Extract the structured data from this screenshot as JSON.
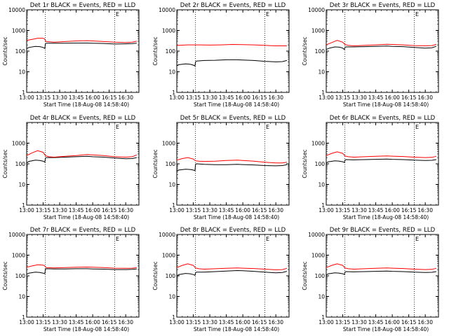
{
  "colors": {
    "events": "#000000",
    "lld": "#ff0000",
    "axes": "#000000",
    "background": "#ffffff"
  },
  "panels_common": {
    "type": "line",
    "ylabel": "Counts/sec",
    "xlabel": "Start Time (18-Aug-08 14:58:40)",
    "y_scale": "log",
    "ylim": [
      1,
      10000
    ],
    "xlim_minutes_from_13_00": [
      0,
      102
    ],
    "x_tick_labels": [
      "13:00",
      "13:15",
      "13:30",
      "13:45",
      "16:00",
      "16:15",
      "16:30"
    ],
    "x_tick_positions_minutes": [
      0,
      15,
      30,
      45,
      60,
      75,
      90
    ],
    "y_tick_labels_hi": [
      "1",
      "10",
      "100",
      "1000",
      "10000"
    ],
    "y_tick_labels_lo": [
      "1",
      "10",
      "100",
      "1000"
    ],
    "dotted_vlines_minutes": [
      17,
      80
    ],
    "marker_label": "E",
    "marker_minutes": 81
  },
  "chart_data": [
    {
      "type": "line",
      "title": "Det 1r BLACK = Events, RED = LLD",
      "y_labels": "hi",
      "series": [
        {
          "name": "Events",
          "x": [
            0,
            2,
            8,
            12,
            15,
            16.5,
            17,
            18,
            25,
            35,
            45,
            55,
            60,
            70,
            80,
            90,
            96,
            100
          ],
          "y": [
            130,
            150,
            170,
            165,
            150,
            135,
            230,
            240,
            240,
            240,
            245,
            245,
            240,
            235,
            220,
            225,
            230,
            240
          ]
        },
        {
          "name": "LLD",
          "x": [
            0,
            5,
            10,
            15,
            16.5,
            17,
            18,
            25,
            35,
            45,
            55,
            60,
            70,
            80,
            90,
            96,
            100
          ],
          "y": [
            330,
            370,
            420,
            420,
            380,
            320,
            290,
            270,
            290,
            310,
            320,
            310,
            290,
            270,
            260,
            270,
            300
          ]
        }
      ]
    },
    {
      "type": "line",
      "title": "Det 2r BLACK = Events, RED = LLD",
      "y_labels": "hi",
      "series": [
        {
          "name": "Events",
          "x": [
            0,
            2,
            8,
            12,
            15,
            16.5,
            17,
            18,
            25,
            35,
            45,
            55,
            60,
            70,
            80,
            90,
            96,
            100
          ],
          "y": [
            20,
            22,
            24,
            23,
            21,
            19,
            30,
            33,
            35,
            36,
            38,
            38,
            37,
            35,
            32,
            30,
            31,
            35
          ]
        },
        {
          "name": "LLD",
          "x": [
            0,
            10,
            20,
            30,
            40,
            50,
            60,
            70,
            80,
            90,
            100
          ],
          "y": [
            190,
            200,
            200,
            195,
            200,
            210,
            205,
            200,
            190,
            180,
            180
          ]
        }
      ]
    },
    {
      "type": "line",
      "title": "Det 3r BLACK = Events, RED = LLD",
      "y_labels": "hi",
      "series": [
        {
          "name": "Events",
          "x": [
            0,
            3,
            8,
            12,
            15,
            16.5,
            17,
            18,
            25,
            35,
            45,
            55,
            60,
            70,
            80,
            90,
            96,
            100
          ],
          "y": [
            120,
            140,
            160,
            155,
            140,
            120,
            150,
            160,
            160,
            165,
            170,
            175,
            170,
            165,
            150,
            140,
            145,
            170
          ]
        },
        {
          "name": "LLD",
          "x": [
            0,
            5,
            10,
            15,
            17,
            20,
            25,
            35,
            45,
            55,
            60,
            70,
            80,
            90,
            96,
            100
          ],
          "y": [
            200,
            260,
            330,
            270,
            210,
            190,
            180,
            190,
            200,
            215,
            210,
            200,
            185,
            180,
            185,
            210
          ]
        }
      ]
    },
    {
      "type": "line",
      "title": "Det 4r BLACK = Events, RED = LLD",
      "y_labels": "lo",
      "series": [
        {
          "name": "Events",
          "x": [
            0,
            2,
            8,
            12,
            15,
            16.5,
            17,
            18,
            25,
            35,
            45,
            55,
            60,
            70,
            80,
            90,
            96,
            100
          ],
          "y": [
            110,
            130,
            150,
            145,
            135,
            120,
            190,
            200,
            200,
            210,
            220,
            230,
            220,
            210,
            190,
            175,
            180,
            200
          ]
        },
        {
          "name": "LLD",
          "x": [
            0,
            5,
            10,
            15,
            17,
            20,
            25,
            35,
            45,
            55,
            60,
            70,
            80,
            90,
            96,
            100
          ],
          "y": [
            250,
            340,
            430,
            360,
            250,
            220,
            210,
            230,
            250,
            280,
            270,
            250,
            220,
            210,
            220,
            270
          ]
        }
      ]
    },
    {
      "type": "line",
      "title": "Det 5r BLACK = Events, RED = LLD",
      "y_labels": "lo",
      "series": [
        {
          "name": "Events",
          "x": [
            0,
            2,
            8,
            12,
            15,
            16.5,
            17,
            18,
            25,
            35,
            45,
            55,
            60,
            70,
            80,
            90,
            96,
            100
          ],
          "y": [
            45,
            50,
            55,
            53,
            50,
            46,
            95,
            100,
            95,
            90,
            90,
            95,
            92,
            88,
            82,
            80,
            82,
            90
          ]
        },
        {
          "name": "LLD",
          "x": [
            0,
            5,
            10,
            15,
            17,
            20,
            25,
            35,
            45,
            55,
            60,
            70,
            80,
            90,
            96,
            100
          ],
          "y": [
            150,
            180,
            200,
            170,
            140,
            135,
            130,
            135,
            145,
            150,
            145,
            135,
            120,
            110,
            110,
            120
          ]
        }
      ]
    },
    {
      "type": "line",
      "title": "Det 6r BLACK = Events, RED = LLD",
      "y_labels": "lo",
      "series": [
        {
          "name": "Events",
          "x": [
            0,
            2,
            8,
            12,
            15,
            16.5,
            17,
            18,
            25,
            35,
            45,
            55,
            60,
            70,
            80,
            90,
            96,
            100
          ],
          "y": [
            110,
            125,
            140,
            135,
            125,
            115,
            150,
            160,
            155,
            160,
            165,
            170,
            165,
            160,
            150,
            145,
            148,
            160
          ]
        },
        {
          "name": "LLD",
          "x": [
            0,
            5,
            10,
            15,
            17,
            20,
            25,
            35,
            45,
            55,
            60,
            70,
            80,
            90,
            96,
            100
          ],
          "y": [
            250,
            320,
            380,
            320,
            240,
            220,
            210,
            220,
            230,
            240,
            235,
            225,
            210,
            200,
            205,
            230
          ]
        }
      ]
    },
    {
      "type": "line",
      "title": "Det 7r BLACK = Events, RED = LLD",
      "y_labels": "hi",
      "series": [
        {
          "name": "Events",
          "x": [
            0,
            2,
            8,
            12,
            15,
            16.5,
            17,
            18,
            25,
            35,
            45,
            55,
            60,
            70,
            80,
            90,
            96,
            100
          ],
          "y": [
            120,
            135,
            150,
            145,
            135,
            125,
            210,
            220,
            215,
            215,
            220,
            220,
            215,
            210,
            200,
            200,
            205,
            215
          ]
        },
        {
          "name": "LLD",
          "x": [
            0,
            5,
            10,
            15,
            16.5,
            17,
            18,
            25,
            35,
            45,
            55,
            60,
            70,
            80,
            90,
            96,
            100
          ],
          "y": [
            260,
            300,
            340,
            330,
            300,
            270,
            250,
            240,
            250,
            260,
            265,
            260,
            250,
            235,
            230,
            235,
            250
          ]
        }
      ]
    },
    {
      "type": "line",
      "title": "Det 8r BLACK = Events, RED = LLD",
      "y_labels": "hi",
      "series": [
        {
          "name": "Events",
          "x": [
            0,
            2,
            8,
            12,
            15,
            16.5,
            17,
            18,
            25,
            35,
            45,
            55,
            60,
            70,
            80,
            90,
            96,
            100
          ],
          "y": [
            100,
            115,
            130,
            125,
            115,
            105,
            140,
            150,
            150,
            160,
            170,
            180,
            175,
            165,
            150,
            140,
            145,
            165
          ]
        },
        {
          "name": "LLD",
          "x": [
            0,
            5,
            10,
            15,
            17,
            20,
            25,
            35,
            45,
            55,
            60,
            70,
            80,
            90,
            96,
            100
          ],
          "y": [
            250,
            320,
            380,
            320,
            240,
            220,
            210,
            220,
            230,
            240,
            235,
            225,
            210,
            195,
            200,
            230
          ]
        }
      ]
    },
    {
      "type": "line",
      "title": "Det 9r BLACK = Events, RED = LLD",
      "y_labels": "hi",
      "series": [
        {
          "name": "Events",
          "x": [
            0,
            2,
            8,
            12,
            15,
            16.5,
            17,
            18,
            25,
            35,
            45,
            55,
            60,
            70,
            80,
            90,
            96,
            100
          ],
          "y": [
            110,
            125,
            140,
            135,
            125,
            115,
            150,
            160,
            155,
            160,
            165,
            170,
            165,
            160,
            150,
            145,
            148,
            160
          ]
        },
        {
          "name": "LLD",
          "x": [
            0,
            5,
            10,
            15,
            17,
            20,
            25,
            35,
            45,
            55,
            60,
            70,
            80,
            90,
            96,
            100
          ],
          "y": [
            250,
            320,
            380,
            320,
            240,
            220,
            210,
            220,
            230,
            240,
            235,
            225,
            210,
            200,
            205,
            230
          ]
        }
      ]
    }
  ]
}
